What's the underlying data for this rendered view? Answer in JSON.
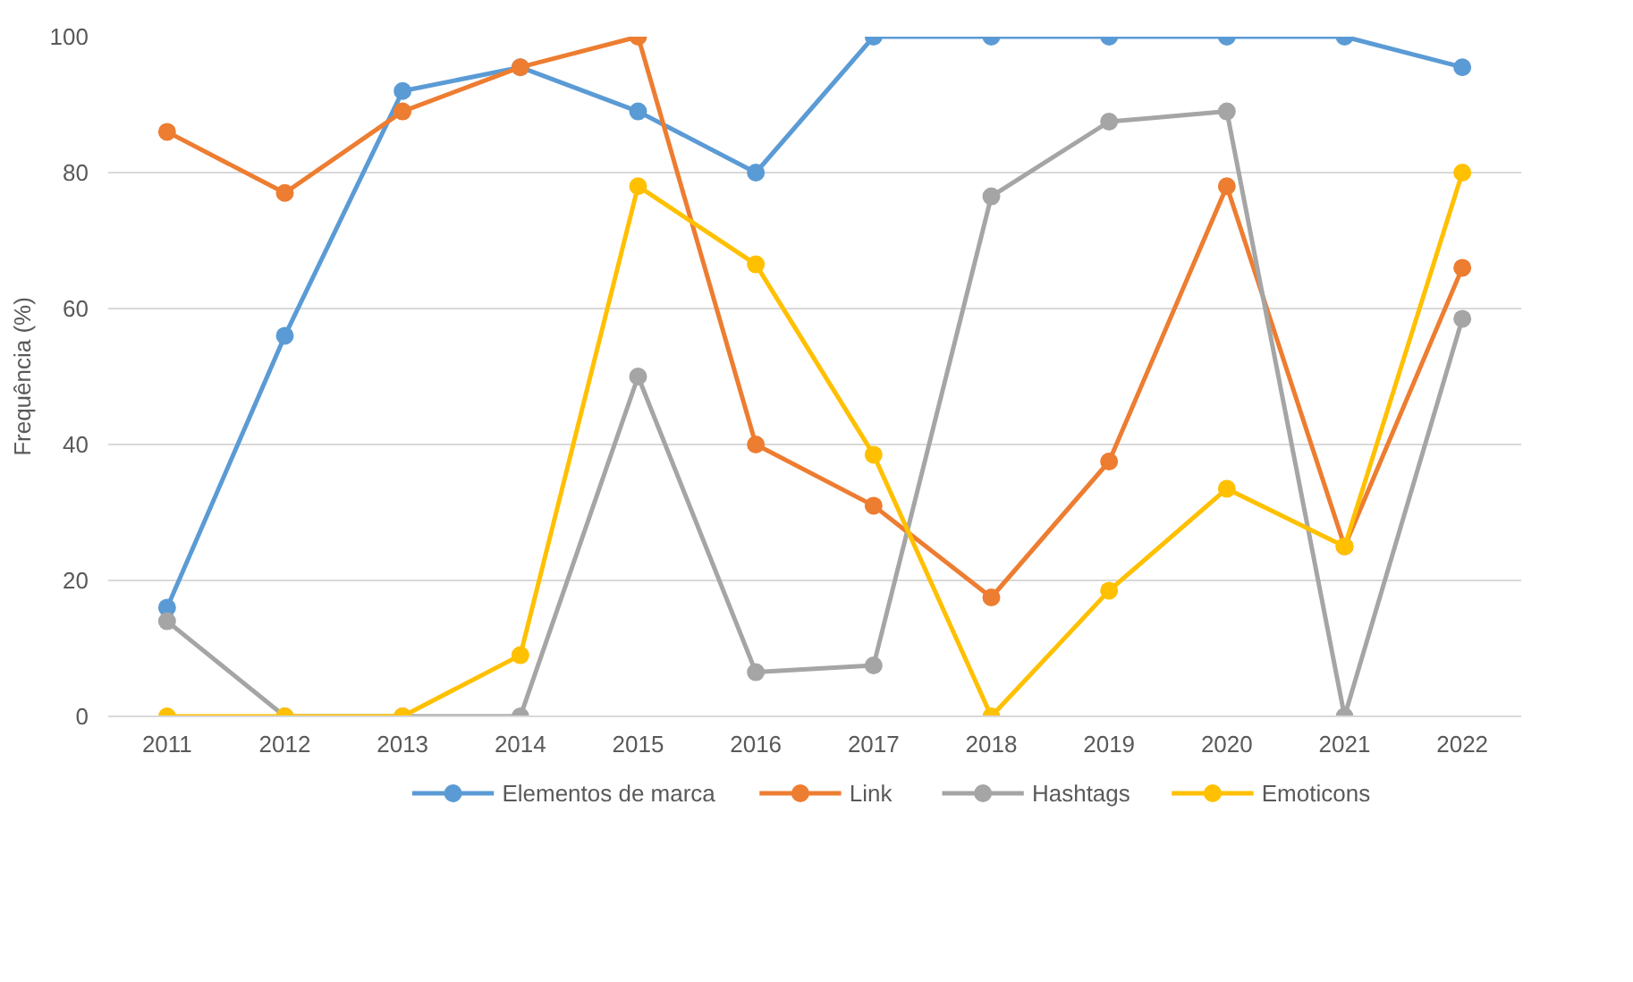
{
  "chart_data": {
    "type": "line",
    "ylabel": "Frequência (%)",
    "categories": [
      "2011",
      "2012",
      "2013",
      "2014",
      "2015",
      "2016",
      "2017",
      "2018",
      "2019",
      "2020",
      "2021",
      "2022"
    ],
    "series": [
      {
        "name": "Elementos de marca",
        "color": "#5b9bd5",
        "values": [
          16,
          56,
          92,
          95.5,
          89,
          80,
          100,
          100,
          100,
          100,
          100,
          95.5
        ]
      },
      {
        "name": "Link",
        "color": "#ed7d31",
        "values": [
          86,
          77,
          89,
          95.5,
          100,
          40,
          31,
          17.5,
          37.5,
          78,
          25,
          66
        ]
      },
      {
        "name": "Hashtags",
        "color": "#a5a5a5",
        "values": [
          14,
          0,
          0,
          0,
          50,
          6.5,
          7.5,
          76.5,
          87.5,
          89,
          0,
          58.5
        ]
      },
      {
        "name": "Emoticons",
        "color": "#ffc000",
        "values": [
          0,
          0,
          0,
          9,
          78,
          66.5,
          38.5,
          0,
          18.5,
          33.5,
          25,
          80
        ]
      }
    ],
    "ylim": [
      0,
      100
    ],
    "yticks": [
      0,
      20,
      40,
      60,
      80,
      100
    ],
    "grid": "y",
    "legend": "bottom",
    "marker": "circle",
    "line_style": "solid"
  }
}
